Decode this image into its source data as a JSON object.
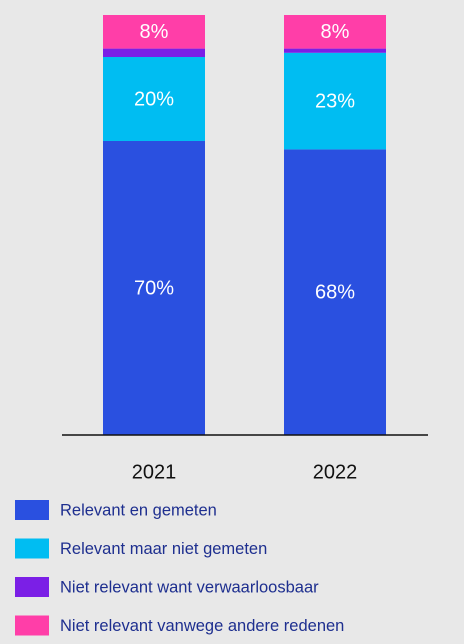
{
  "chart_data": {
    "type": "stacked_bar",
    "categories": [
      "2021",
      "2022"
    ],
    "series": [
      {
        "name": "Relevant en gemeten",
        "color": "#2a50e0",
        "values": [
          70,
          68
        ],
        "value_labels": [
          "70%",
          "68%"
        ]
      },
      {
        "name": "Relevant maar niet gemeten",
        "color": "#00bdf2",
        "values": [
          20,
          23
        ],
        "value_labels": [
          "20%",
          "23%"
        ]
      },
      {
        "name": "Niet relevant want verwaarloosbaar",
        "color": "#7b1fe6",
        "values": [
          2,
          1
        ]
      },
      {
        "name": "Niet relevant vanwege andere redenen",
        "color": "#ff3ea8",
        "values": [
          8,
          8
        ],
        "value_labels": [
          "8%",
          "8%"
        ]
      }
    ]
  }
}
